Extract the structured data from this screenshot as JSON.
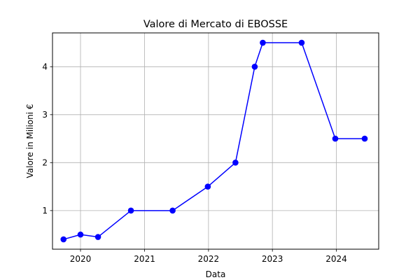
{
  "chart_data": {
    "type": "line",
    "title": "Valore di Mercato di EBOSSE",
    "xlabel": "Data",
    "ylabel": "Valore in Milioni €",
    "x_ticks": [
      "2020",
      "2021",
      "2022",
      "2023",
      "2024"
    ],
    "y_ticks": [
      "1",
      "2",
      "3",
      "4"
    ],
    "x_range": [
      "2019-07-25",
      "2024-08-30"
    ],
    "y_range": [
      0.195,
      4.705
    ],
    "grid": true,
    "series": [
      {
        "color": "#0000ff",
        "marker": "circle",
        "points": [
          {
            "x": "2019-09-26",
            "y": 0.4
          },
          {
            "x": "2020-01-01",
            "y": 0.5
          },
          {
            "x": "2020-04-10",
            "y": 0.45
          },
          {
            "x": "2020-10-15",
            "y": 1.0
          },
          {
            "x": "2021-06-10",
            "y": 1.0
          },
          {
            "x": "2021-12-28",
            "y": 1.5
          },
          {
            "x": "2022-06-04",
            "y": 2.0
          },
          {
            "x": "2022-09-22",
            "y": 4.0
          },
          {
            "x": "2022-11-07",
            "y": 4.5
          },
          {
            "x": "2023-06-17",
            "y": 4.5
          },
          {
            "x": "2023-12-26",
            "y": 2.5
          },
          {
            "x": "2024-06-11",
            "y": 2.5
          }
        ]
      }
    ]
  }
}
